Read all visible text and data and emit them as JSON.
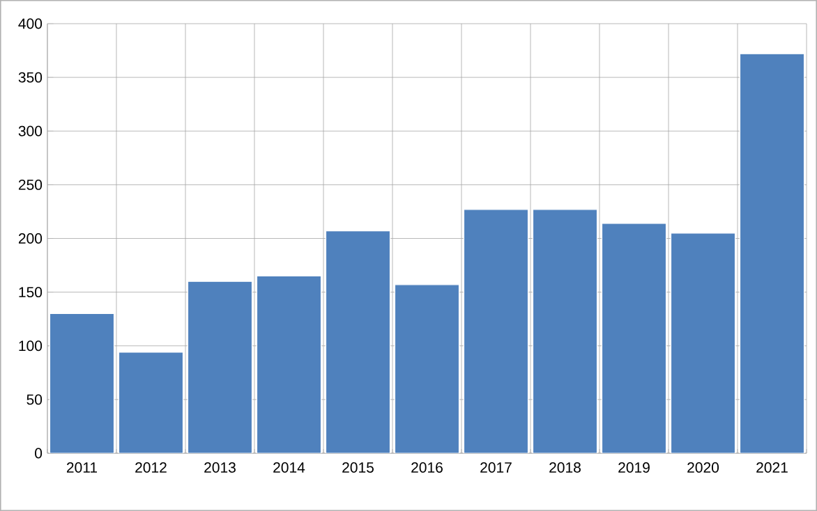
{
  "chart_data": {
    "type": "bar",
    "categories": [
      "2011",
      "2012",
      "2013",
      "2014",
      "2015",
      "2016",
      "2017",
      "2018",
      "2019",
      "2020",
      "2021"
    ],
    "values": [
      130,
      94,
      160,
      165,
      207,
      157,
      227,
      227,
      214,
      205,
      372
    ],
    "color": "#4f81bd",
    "ylim": [
      0,
      400
    ],
    "yticks": [
      0,
      50,
      100,
      150,
      200,
      250,
      300,
      350,
      400
    ],
    "grid": true
  }
}
